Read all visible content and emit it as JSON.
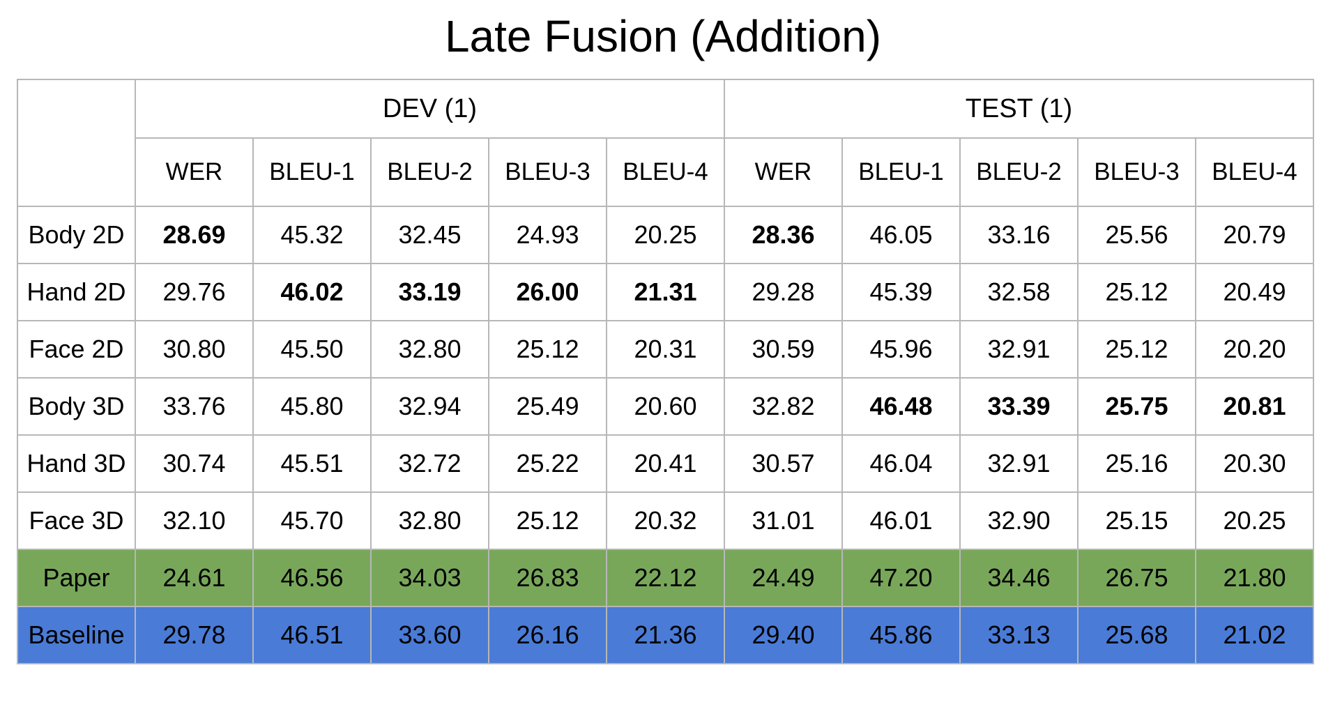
{
  "title": "Late Fusion (Addition)",
  "column_groups": [
    "DEV (1)",
    "TEST (1)"
  ],
  "metrics": [
    "WER",
    "BLEU-1",
    "BLEU-2",
    "BLEU-3",
    "BLEU-4"
  ],
  "colors": {
    "paper_row": "#78a75a",
    "baseline_row": "#4a7bd6",
    "grid": "#b7b7b7"
  },
  "rows": [
    {
      "label": "Body 2D",
      "values": [
        "28.69",
        "45.32",
        "32.45",
        "24.93",
        "20.25",
        "28.36",
        "46.05",
        "33.16",
        "25.56",
        "20.79"
      ],
      "bold": [
        0,
        5
      ]
    },
    {
      "label": "Hand 2D",
      "values": [
        "29.76",
        "46.02",
        "33.19",
        "26.00",
        "21.31",
        "29.28",
        "45.39",
        "32.58",
        "25.12",
        "20.49"
      ],
      "bold": [
        1,
        2,
        3,
        4
      ]
    },
    {
      "label": "Face 2D",
      "values": [
        "30.80",
        "45.50",
        "32.80",
        "25.12",
        "20.31",
        "30.59",
        "45.96",
        "32.91",
        "25.12",
        "20.20"
      ],
      "bold": []
    },
    {
      "label": "Body 3D",
      "values": [
        "33.76",
        "45.80",
        "32.94",
        "25.49",
        "20.60",
        "32.82",
        "46.48",
        "33.39",
        "25.75",
        "20.81"
      ],
      "bold": [
        6,
        7,
        8,
        9
      ]
    },
    {
      "label": "Hand 3D",
      "values": [
        "30.74",
        "45.51",
        "32.72",
        "25.22",
        "20.41",
        "30.57",
        "46.04",
        "32.91",
        "25.16",
        "20.30"
      ],
      "bold": []
    },
    {
      "label": "Face 3D",
      "values": [
        "32.10",
        "45.70",
        "32.80",
        "25.12",
        "20.32",
        "31.01",
        "46.01",
        "32.90",
        "25.15",
        "20.25"
      ],
      "bold": []
    },
    {
      "label": "Paper",
      "values": [
        "24.61",
        "46.56",
        "34.03",
        "26.83",
        "22.12",
        "24.49",
        "47.20",
        "34.46",
        "26.75",
        "21.80"
      ],
      "bold": []
    },
    {
      "label": "Baseline",
      "values": [
        "29.78",
        "46.51",
        "33.60",
        "26.16",
        "21.36",
        "29.40",
        "45.86",
        "33.13",
        "25.68",
        "21.02"
      ],
      "bold": []
    }
  ]
}
